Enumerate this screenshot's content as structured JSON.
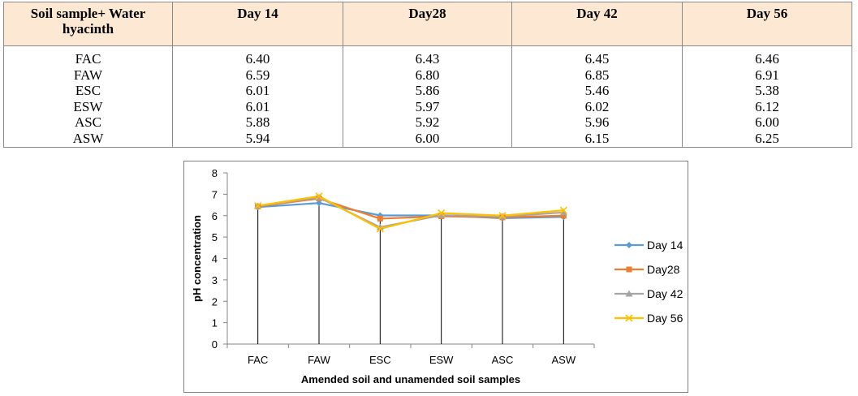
{
  "table": {
    "headers": [
      "Soil sample+ Water hyacinth",
      "Day 14",
      "Day28",
      "Day 42",
      "Day 56"
    ],
    "rows": [
      [
        "FAC",
        "6.40",
        "6.43",
        "6.45",
        "6.46"
      ],
      [
        "FAW",
        "6.59",
        "6.80",
        "6.85",
        "6.91"
      ],
      [
        "ESC",
        "6.01",
        "5.86",
        "5.46",
        "5.38"
      ],
      [
        "ESW",
        "6.01",
        "5.97",
        "6.02",
        "6.12"
      ],
      [
        "ASC",
        "5.88",
        "5.92",
        "5.96",
        "6.00"
      ],
      [
        "ASW",
        "5.94",
        "6.00",
        "6.15",
        "6.25"
      ]
    ]
  },
  "chart_data": {
    "type": "line",
    "title": "",
    "categories": [
      "FAC",
      "FAW",
      "ESC",
      "ESW",
      "ASC",
      "ASW"
    ],
    "xlabel": "Amended soil and unamended soil samples",
    "ylabel": "pH concentration",
    "ylim": [
      0,
      8
    ],
    "yticks": [
      "0",
      "1",
      "2",
      "3",
      "4",
      "5",
      "6",
      "7",
      "8"
    ],
    "drop_lines": true,
    "legend_position": "right",
    "series": [
      {
        "name": "Day 14",
        "values": [
          6.4,
          6.59,
          6.01,
          6.01,
          5.88,
          5.94
        ],
        "color": "#5b9bd5",
        "marker": "diamond"
      },
      {
        "name": "Day28",
        "values": [
          6.43,
          6.8,
          5.86,
          5.97,
          5.92,
          6.0
        ],
        "color": "#ed7d31",
        "marker": "square"
      },
      {
        "name": "Day 42",
        "values": [
          6.45,
          6.85,
          5.46,
          6.02,
          5.96,
          6.15
        ],
        "color": "#a5a5a5",
        "marker": "triangle"
      },
      {
        "name": "Day 56",
        "values": [
          6.46,
          6.91,
          5.38,
          6.12,
          6.0,
          6.25
        ],
        "color": "#ffc000",
        "marker": "x"
      }
    ]
  }
}
